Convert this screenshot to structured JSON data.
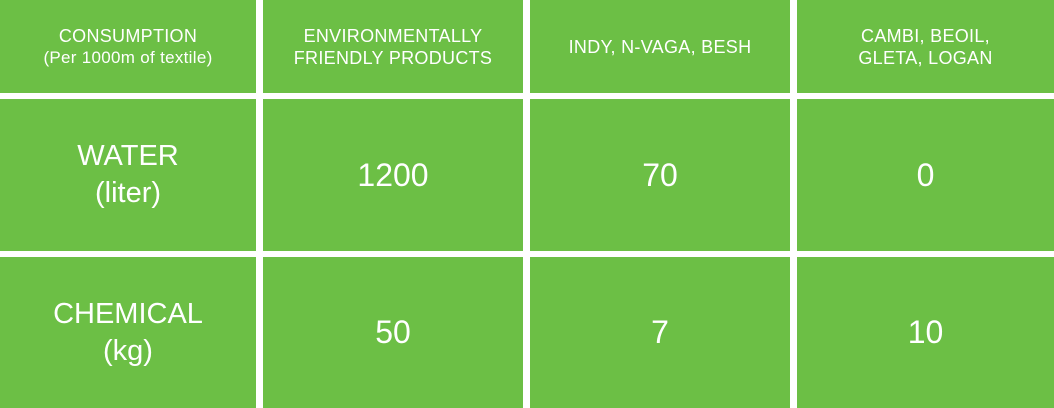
{
  "header": {
    "col0_line1": "CONSUMPTION",
    "col0_line2": "(Per 1000m of textile)",
    "col1_line1": "ENVIRONMENTALLY",
    "col1_line2": "FRIENDLY PRODUCTS",
    "col2_line1": "INDY, N-VAGA, BESH",
    "col3_line1": "CAMBI, BEOIL,",
    "col3_line2": "GLETA, LOGAN"
  },
  "rows": [
    {
      "label_line1": "WATER",
      "label_line2": "(liter)",
      "values": [
        "1200",
        "70",
        "0"
      ]
    },
    {
      "label_line1": "CHEMICAL",
      "label_line2": "(kg)",
      "values": [
        "50",
        "7",
        "10"
      ]
    }
  ],
  "colors": {
    "cell": "#6cbf45",
    "text": "#ffffff",
    "gridline": "#ffffff"
  }
}
